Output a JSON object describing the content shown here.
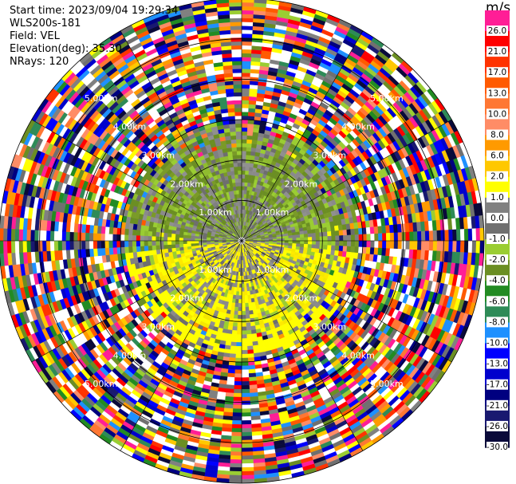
{
  "header": {
    "start_time": "Start time: 2023/09/04 19:29:34",
    "instrument": "WLS200s-181",
    "field": "Field: VEL",
    "elevation": "Elevation(deg): 35.30",
    "nrays": "NRays: 120"
  },
  "colorbar": {
    "unit": "m/s",
    "ticks": [
      "26.0",
      "21.0",
      "17.0",
      "13.0",
      "10.0",
      "8.0",
      "6.0",
      "2.0",
      "1.0",
      "0.0",
      "-1.0",
      "-2.0",
      "-4.0",
      "-6.0",
      "-8.0",
      "-10.0",
      "-13.0",
      "-17.0",
      "-21.0",
      "-26.0",
      "-30.0"
    ],
    "colors": [
      "#ff1e96",
      "#ff0000",
      "#ff3300",
      "#ff5a00",
      "#ff7733",
      "#ff8c66",
      "#ff9a00",
      "#ffc800",
      "#ffff00",
      "#808080",
      "#707070",
      "#9acd32",
      "#6b8e23",
      "#228b22",
      "#2e8b57",
      "#1e90ff",
      "#0000ff",
      "#0000cd",
      "#000080",
      "#191970",
      "#0a0a3a"
    ]
  },
  "range_labels": [
    "1.00km",
    "2.00km",
    "3.00km",
    "4.00km",
    "5.00km"
  ],
  "chart_data": {
    "type": "ppi",
    "title": "",
    "field": "VEL",
    "units": "m/s",
    "n_rays": 120,
    "elevation_deg": 35.3,
    "range_rings_km": [
      1,
      2,
      3,
      4,
      5,
      6
    ],
    "max_range_km": 6.0,
    "vmin": -30.0,
    "vmax": 26.0,
    "colors_semantic": {
      "near_range_negative_north": "#6b8e23",
      "near_range_positive_south": "#ffff00",
      "far_range": "noise"
    }
  }
}
